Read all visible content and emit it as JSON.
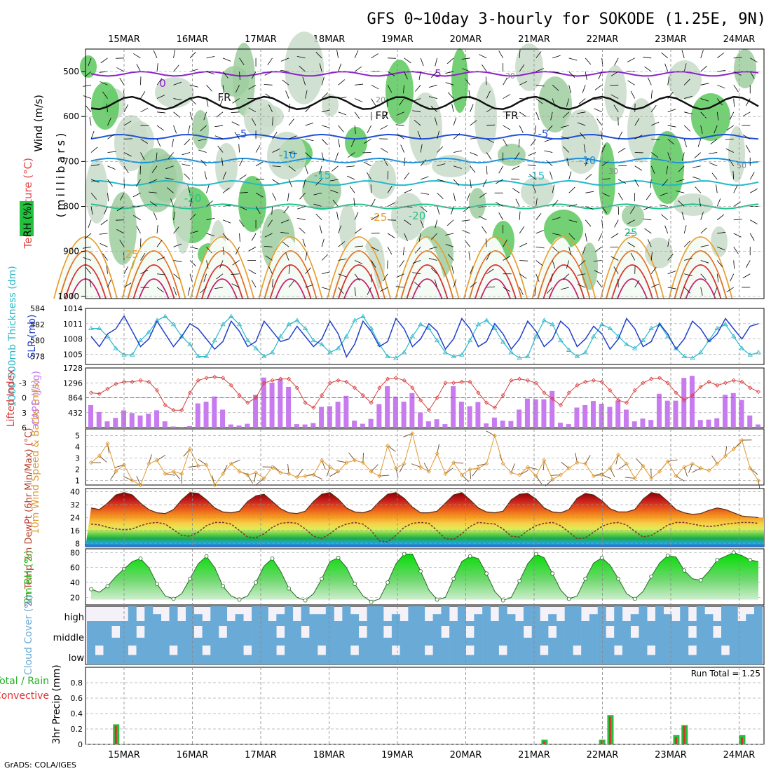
{
  "title": "GFS 0~10day 3-hourly for SOKODE (1.25E, 9N)",
  "credit": "GrADS: COLA/IGES",
  "dates": [
    "15MAR",
    "16MAR",
    "17MAR",
    "18MAR",
    "19MAR",
    "20MAR",
    "21MAR",
    "22MAR",
    "23MAR",
    "24MAR"
  ],
  "colors": {
    "rh_green": "#22c03c",
    "slp": "#1f3fcc",
    "thickness": "#2bb8c8",
    "cape_bar": "#c77bef",
    "lifted_index": "#d84040",
    "wind_speed": "#e09a30",
    "rh2m_green": "#20c020",
    "cloud_blue": "#6aaad6",
    "precip_total": "#22c03c",
    "precip_conv": "#e03030"
  },
  "chart_data": [
    {
      "type": "heatmap",
      "panel": "cross-section",
      "ylabel": "(millibars)",
      "side_labels": [
        "Wind (m/s)",
        "Temperature (°C)",
        "RH (%)"
      ],
      "yticks": [
        "500",
        "600",
        "700",
        "800",
        "900",
        "1000"
      ],
      "contour_labels": [
        "5",
        "0",
        "FR",
        "FR",
        "FR",
        "-5",
        "-5",
        "-10",
        "-10",
        "-15",
        "-15",
        "-20",
        "-20",
        "-25",
        "25",
        "25",
        "20",
        "30",
        "30",
        "50",
        "50"
      ],
      "isotherms": [
        {
          "label": "-5",
          "p": 505
        },
        {
          "label": "0",
          "p": 570
        },
        {
          "label": "-5",
          "p": 645
        },
        {
          "label": "-10",
          "p": 698
        },
        {
          "label": "-15",
          "p": 748
        },
        {
          "label": "-20",
          "p": 800
        }
      ]
    },
    {
      "type": "line",
      "panel": "slp-thickness",
      "ylabel_left": "1000-500mb Thickness (dm)",
      "ylabel_right": "SLP (mb)",
      "left_ticks": [
        "584",
        "582",
        "580",
        "578"
      ],
      "right_ticks": [
        "1014",
        "1011",
        "1008",
        "1005"
      ],
      "slp_range": [
        1003,
        1014
      ],
      "thickness_range": [
        577,
        584
      ],
      "series": [
        {
          "name": "SLP (mb)",
          "values": [
            1008.5,
            1006.5,
            1009,
            1010,
            1012.5,
            1009.5,
            1006.5,
            1008,
            1011.5,
            1009,
            1006.5,
            1008.5,
            1011,
            1010,
            1008,
            1006,
            1007.5,
            1011.5,
            1009.5,
            1006.5,
            1007.5,
            1011.5,
            1009.5,
            1007.5,
            1008,
            1010.5,
            1008.5,
            1006.5,
            1008,
            1011.5,
            1009,
            1004.5,
            1007,
            1011.5,
            1009.5,
            1006.5,
            1007.5,
            1012,
            1010,
            1006.5,
            1008,
            1011,
            1009.5,
            1006,
            1008,
            1012,
            1010,
            1006.5,
            1007.5,
            1011,
            1009,
            1006,
            1008,
            1011.5,
            1009.5,
            1006.5,
            1008,
            1011.5,
            1010,
            1006.5,
            1008,
            1010.5,
            1009,
            1006,
            1008,
            1012,
            1010,
            1006.5,
            1007.5,
            1011,
            1009,
            1006,
            1008,
            1011.5,
            1010,
            1007.5,
            1009,
            1012,
            1010,
            1008,
            1010.5,
            1011
          ]
        },
        {
          "name": "1000-500mb Thickness (dm)",
          "values": [
            581.5,
            581.5,
            580.5,
            579,
            578.2,
            578.2,
            580,
            581,
            582.5,
            583,
            582,
            580.5,
            579.5,
            578,
            578,
            580,
            582,
            583,
            582,
            580,
            579,
            578,
            578.5,
            580.5,
            582,
            582.5,
            581.5,
            580,
            579.5,
            578.5,
            579,
            580.5,
            582.5,
            583,
            581.5,
            579.5,
            578,
            577.8,
            578.5,
            580.5,
            582,
            581.5,
            580,
            578.5,
            578,
            578.2,
            580,
            582,
            582.5,
            581.5,
            579.8,
            578.5,
            577.8,
            578,
            580.5,
            582.5,
            582,
            580,
            578.8,
            578,
            578.5,
            580.5,
            582,
            581.5,
            580.5,
            579.5,
            579,
            580,
            581.5,
            582,
            580.5,
            579,
            578,
            577.8,
            578.5,
            580,
            581.5,
            582,
            580.5,
            579,
            578.2,
            578.5
          ]
        }
      ]
    },
    {
      "type": "bar",
      "panel": "cape-li",
      "ylabel_left": "Lifted Index",
      "ylabel_right": "CAPE (J/kg)",
      "li_ticks": [
        "-3",
        "0",
        "3",
        "6"
      ],
      "cape_ticks": [
        "1728",
        "1296",
        "864",
        "432"
      ],
      "cape_range": [
        0,
        1728
      ],
      "li_range": [
        6,
        -6
      ],
      "series": [
        {
          "name": "CAPE (J/kg)",
          "values": [
            650,
            450,
            180,
            280,
            500,
            420,
            350,
            400,
            500,
            180,
            30,
            20,
            40,
            700,
            750,
            900,
            520,
            90,
            60,
            110,
            950,
            1450,
            1300,
            1400,
            1180,
            100,
            90,
            130,
            600,
            620,
            750,
            920,
            200,
            110,
            250,
            680,
            1200,
            900,
            750,
            1000,
            440,
            180,
            240,
            100,
            1200,
            750,
            620,
            740,
            120,
            290,
            200,
            190,
            520,
            840,
            820,
            820,
            1060,
            140,
            100,
            580,
            650,
            770,
            690,
            600,
            780,
            520,
            180,
            260,
            220,
            980,
            780,
            780,
            1440,
            1500,
            220,
            230,
            270,
            950,
            1000,
            800,
            350,
            90
          ]
        },
        {
          "name": "Lifted Index",
          "values": [
            -1,
            -0.8,
            -1.8,
            -2.8,
            -3.2,
            -3.2,
            -3.5,
            -3.2,
            -1.5,
            1.5,
            2.5,
            2.5,
            -1,
            -3.5,
            -4,
            -4.2,
            -4,
            -2.5,
            -0.5,
            1,
            0,
            -3,
            -3.5,
            -3.8,
            -3.8,
            -2,
            1,
            2,
            -0.5,
            -3,
            -3.5,
            -3.2,
            -2,
            -0.5,
            1,
            -2,
            -3.8,
            -4,
            -3.5,
            -2,
            0.5,
            2.5,
            0,
            -3,
            -3,
            -3.2,
            -3.2,
            -1,
            1,
            2,
            -0.5,
            -3.5,
            -3.8,
            -3.5,
            -3,
            -1,
            0.2,
            1.5,
            -1,
            -2.5,
            -3.2,
            -3.5,
            -3.2,
            -1.5,
            0.5,
            1,
            -1.5,
            -3,
            -3.8,
            -4,
            -3,
            -1,
            0.5,
            -0.5,
            -2.2,
            -3.2,
            -2.5,
            -3,
            -3.5,
            -3.2,
            -2,
            -1.2
          ]
        }
      ]
    },
    {
      "type": "line",
      "panel": "wind10m",
      "ylabel": "10m Wind Speed & Barbs (m/s)",
      "ticks": [
        "5",
        "4",
        "3",
        "2",
        "1"
      ],
      "wind_range": [
        0.6,
        5.6
      ],
      "series": [
        {
          "name": "Speed (m/s)",
          "values": [
            2.6,
            3.2,
            4.3,
            1.8,
            2.4,
            1,
            0.6,
            2.5,
            2.8,
            1.6,
            1.8,
            1.6,
            3.8,
            2.3,
            2.4,
            0.6,
            1.6,
            2.5,
            1.8,
            1.5,
            1.7,
            1.2,
            2.2,
            1.7,
            1.6,
            1.3,
            1.4,
            1.5,
            2.8,
            2.2,
            1.8,
            2.6,
            2.8,
            2.6,
            1.8,
            1.4,
            4.1,
            2.1,
            2.5,
            5.2,
            2.2,
            1.8,
            3.4,
            1.6,
            2.6,
            1.5,
            2,
            2.1,
            2.5,
            5,
            2.5,
            1.7,
            1.5,
            2.2,
            1.4,
            2.8,
            1.1,
            1.5,
            2.1,
            2.6,
            2.5,
            1.4,
            1.5,
            2.1,
            3.3,
            2.5,
            1.2,
            2.3,
            1.2,
            1.8,
            2.7,
            1.4,
            2.2,
            2.5,
            2.1,
            1.9,
            2.5,
            3.2,
            3.8,
            4.6,
            2.1,
            1
          ]
        }
      ]
    },
    {
      "type": "area",
      "panel": "temp2m",
      "ylabel": "2m Temp 2m DewPt (6hr Min/Max) (°C)",
      "ticks": [
        "40",
        "32",
        "24",
        "16",
        "8"
      ],
      "y_range": [
        6,
        42
      ],
      "series": [
        {
          "name": "2m Temp",
          "values": [
            30,
            29,
            33,
            38,
            39.5,
            38,
            33,
            29,
            27,
            26.5,
            29,
            35,
            39.5,
            39,
            35,
            30,
            27.5,
            27,
            28,
            34,
            37.5,
            38.5,
            34,
            29.5,
            27,
            26.5,
            28,
            34,
            38.5,
            39.5,
            35.5,
            30,
            27.5,
            27,
            28.5,
            34,
            38.5,
            39.5,
            36,
            30.5,
            27,
            27,
            28,
            33,
            38,
            39.5,
            35,
            30,
            27.5,
            27,
            28,
            35,
            38.5,
            39,
            35.5,
            30,
            27.5,
            27,
            29,
            36,
            39,
            38,
            34.5,
            29.5,
            27.5,
            27.5,
            29,
            35.5,
            39.5,
            38.5,
            34,
            29,
            27,
            26,
            26.5,
            28.5,
            30,
            29,
            27,
            25,
            24.5,
            24
          ]
        },
        {
          "name": "2m DewPt",
          "values": [
            20,
            19.5,
            18,
            17,
            16.5,
            17,
            19,
            20.5,
            21,
            20,
            16.5,
            13,
            12.5,
            15,
            19,
            21,
            21,
            20,
            16,
            12,
            11.5,
            14,
            18,
            20.5,
            21,
            20.5,
            17,
            12.5,
            11,
            14,
            18,
            20,
            21,
            20,
            16,
            9.5,
            9,
            13,
            18,
            20.5,
            21,
            20.5,
            16,
            11,
            10.5,
            14,
            18.5,
            21,
            20.5,
            20,
            17,
            12.5,
            12,
            16,
            19,
            20.5,
            21,
            19,
            15,
            11,
            11.5,
            15,
            18.5,
            20.5,
            21,
            19.5,
            15.5,
            12,
            13,
            16,
            19.5,
            21,
            21,
            20,
            19,
            18.5,
            19,
            20,
            20.5,
            21,
            21,
            20.5
          ]
        }
      ]
    },
    {
      "type": "area",
      "panel": "rh2m",
      "ylabel": "2m RH (%)",
      "ticks": [
        "80",
        "60",
        "40",
        "20"
      ],
      "y_range": [
        10,
        85
      ],
      "series": [
        {
          "name": "2m RH (%)",
          "values": [
            31,
            27,
            35,
            48,
            58,
            68,
            72,
            60,
            38,
            22,
            18,
            25,
            45,
            65,
            75,
            60,
            35,
            22,
            17,
            22,
            40,
            62,
            72,
            55,
            32,
            20,
            16,
            25,
            45,
            68,
            73,
            60,
            38,
            22,
            14,
            18,
            40,
            65,
            78,
            78,
            55,
            30,
            17,
            20,
            45,
            68,
            75,
            72,
            52,
            28,
            16,
            20,
            42,
            65,
            78,
            73,
            52,
            30,
            18,
            22,
            45,
            66,
            73,
            63,
            45,
            25,
            18,
            28,
            48,
            66,
            76,
            74,
            56,
            45,
            43,
            55,
            70,
            75,
            80,
            76,
            70,
            68
          ]
        }
      ]
    },
    {
      "type": "heatmap",
      "panel": "cloud-cover",
      "ylabel": "Cloud Cover (%)",
      "levels": [
        "high",
        "middle",
        "low"
      ]
    },
    {
      "type": "bar",
      "panel": "precip",
      "ylabel": "3hr Precip (mm)",
      "side_label_total": "Total / Rain",
      "side_label_conv": "Convective",
      "annotation": "Run Total = 1.25",
      "ticks": [
        "0.8",
        "0.6",
        "0.4",
        "0.2",
        "0"
      ],
      "y_range": [
        0,
        1
      ],
      "series": [
        {
          "name": "Total / Rain",
          "points": [
            [
              3,
              0.26
            ],
            [
              55,
              0.06
            ],
            [
              62,
              0.06
            ],
            [
              63,
              0.38
            ],
            [
              71,
              0.12
            ],
            [
              72,
              0.25
            ],
            [
              79,
              0.12
            ]
          ]
        },
        {
          "name": "Convective",
          "points": [
            [
              3,
              0.24
            ],
            [
              55,
              0.04
            ],
            [
              62,
              0.05
            ],
            [
              63,
              0.36
            ],
            [
              71,
              0.09
            ],
            [
              72,
              0.24
            ],
            [
              79,
              0.09
            ]
          ]
        }
      ]
    }
  ]
}
